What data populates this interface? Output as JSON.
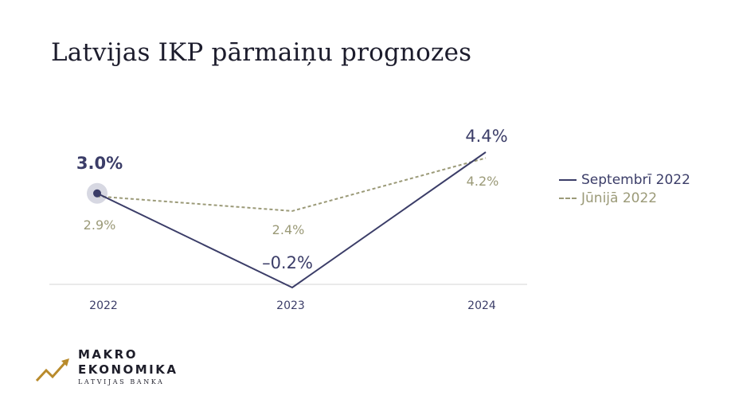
{
  "chart_data": {
    "type": "line",
    "title": "Latvijas IKP pārmaiņu prognozes",
    "categories": [
      "2022",
      "2023",
      "2024"
    ],
    "series": [
      {
        "name": "Septembrī 2022",
        "values": [
          3.0,
          -0.2,
          4.4
        ],
        "labels": [
          "3.0%",
          "–0.2%",
          "4.4%"
        ],
        "color": "#3b3d68",
        "style": "solid"
      },
      {
        "name": "Jūnijā 2022",
        "values": [
          2.9,
          2.4,
          4.2
        ],
        "labels": [
          "2.9%",
          "2.4%",
          "4.2%"
        ],
        "color": "#9b9a78",
        "style": "dashed"
      }
    ],
    "ylim": [
      -0.2,
      4.4
    ],
    "grid": false,
    "legend": "right",
    "highlight": "2022"
  },
  "brand": {
    "line1": "MAKRO",
    "line2": "EKONOMIKA",
    "line3": "LATVIJAS BANKA",
    "accent": "#b98b2c"
  }
}
